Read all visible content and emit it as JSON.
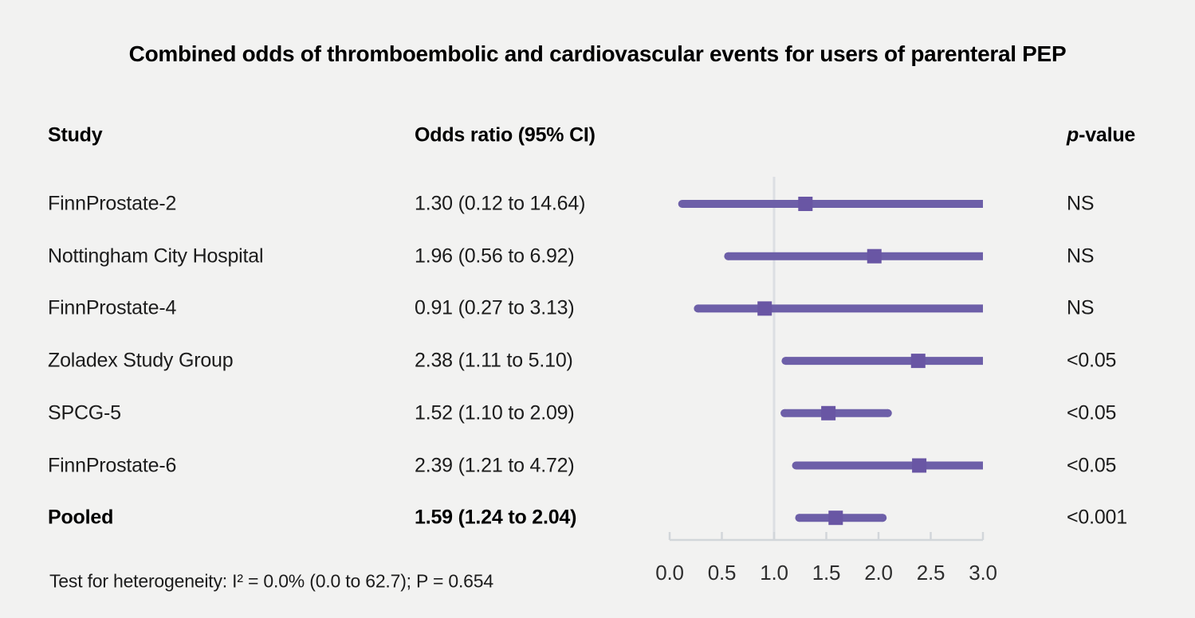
{
  "title": "Combined odds of thromboembolic and cardiovascular events for users of parenteral PEP",
  "columns": {
    "study": "Study",
    "odds_ratio": "Odds ratio (95% CI)",
    "p_prefix": "p",
    "p_suffix": "-value"
  },
  "footnote": "Test for heterogeneity: I² = 0.0% (0.0 to 62.7); P = 0.654",
  "colors": {
    "background": "#f2f2f1",
    "ci_line": "#6d5fa8",
    "marker": "#6956a4",
    "reference_line": "#dcdfe3",
    "axis": "#d2d6da"
  },
  "chart_data": {
    "type": "forest",
    "title": "Combined odds of thromboembolic and cardiovascular events for users of parenteral PEP",
    "xlim": [
      0,
      3
    ],
    "reference_value": 1.0,
    "tick_values": [
      0,
      0.5,
      1,
      1.5,
      2,
      2.5,
      3
    ],
    "tick_labels": [
      "0.0",
      "0.5",
      "1.0",
      "1.5",
      "2.0",
      "2.5",
      "3.0"
    ],
    "rows": [
      {
        "study": "FinnProstate-2",
        "or": 1.3,
        "ci_low": 0.12,
        "ci_high": 14.64,
        "or_label": "1.30 (0.12 to 14.64)",
        "p": "NS",
        "emphasis": false
      },
      {
        "study": "Nottingham City Hospital",
        "or": 1.96,
        "ci_low": 0.56,
        "ci_high": 6.92,
        "or_label": "1.96 (0.56 to 6.92)",
        "p": "NS",
        "emphasis": false
      },
      {
        "study": "FinnProstate-4",
        "or": 0.91,
        "ci_low": 0.27,
        "ci_high": 3.13,
        "or_label": "0.91 (0.27 to 3.13)",
        "p": "NS",
        "emphasis": false
      },
      {
        "study": "Zoladex Study Group",
        "or": 2.38,
        "ci_low": 1.11,
        "ci_high": 5.1,
        "or_label": "2.38 (1.11 to 5.10)",
        "p": "<0.05",
        "emphasis": false
      },
      {
        "study": "SPCG-5",
        "or": 1.52,
        "ci_low": 1.1,
        "ci_high": 2.09,
        "or_label": "1.52 (1.10 to 2.09)",
        "p": "<0.05",
        "emphasis": false
      },
      {
        "study": "FinnProstate-6",
        "or": 2.39,
        "ci_low": 1.21,
        "ci_high": 4.72,
        "or_label": "2.39 (1.21 to 4.72)",
        "p": "<0.05",
        "emphasis": false
      },
      {
        "study": "Pooled",
        "or": 1.59,
        "ci_low": 1.24,
        "ci_high": 2.04,
        "or_label": "1.59 (1.24 to 2.04)",
        "p": "<0.001",
        "emphasis": true
      }
    ]
  }
}
